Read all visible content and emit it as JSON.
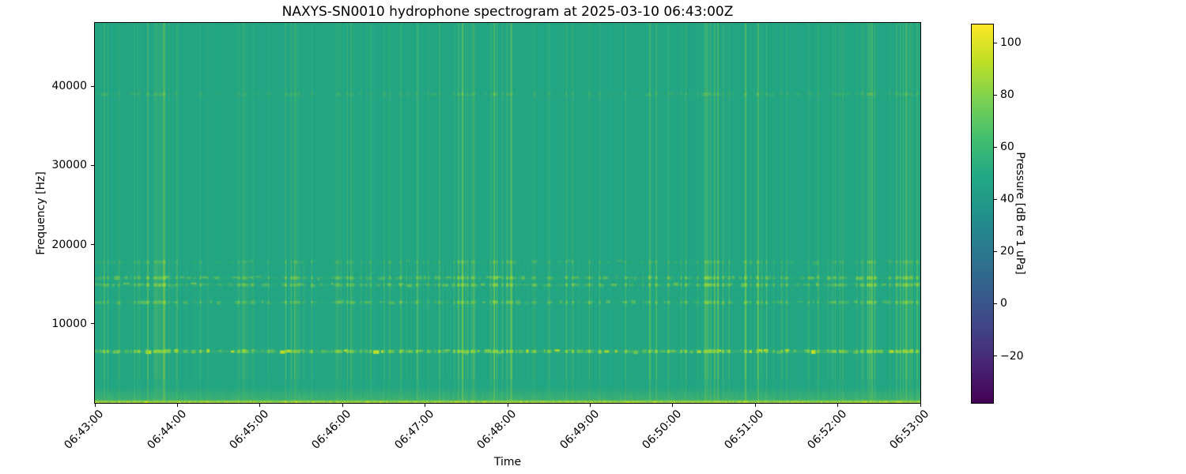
{
  "chart_data": {
    "type": "heatmap",
    "title": "NAXYS-SN0010 hydrophone spectrogram at 2025-03-10 06:43:00Z",
    "xlabel": "Time",
    "ylabel": "Frequency [Hz]",
    "x_ticks": [
      "06:43:00",
      "06:44:00",
      "06:45:00",
      "06:46:00",
      "06:47:00",
      "06:48:00",
      "06:49:00",
      "06:50:00",
      "06:51:00",
      "06:52:00",
      "06:53:00"
    ],
    "x_start": "06:43:00",
    "x_end": "06:53:00",
    "y_ticks": [
      10000,
      20000,
      30000,
      40000
    ],
    "ylim": [
      0,
      48000
    ],
    "grid": false,
    "colorbar": {
      "label": "Pressure [dB re 1 uPa]",
      "ticks": [
        100,
        80,
        60,
        40,
        20,
        0,
        -20
      ],
      "vmin": -38,
      "vmax": 107,
      "colormap": "viridis",
      "viridis_stops": [
        "#440154",
        "#482475",
        "#414487",
        "#355f8d",
        "#2a788e",
        "#21918c",
        "#22a884",
        "#44bf70",
        "#7ad151",
        "#bddf26",
        "#fde725"
      ],
      "position": "right"
    },
    "background_level_db": 55,
    "colors": {
      "base": "#21a585",
      "streak": "#8dd342",
      "hot": "#c8e020",
      "spark": "#d8e219",
      "dark": "#17866f"
    },
    "tonal_bands": [
      {
        "freq_hz": 6500,
        "peak_db": 85,
        "bandwidth_hz": 450,
        "strength": 0.85,
        "style": "bright dashes"
      },
      {
        "freq_hz": 12700,
        "peak_db": 66,
        "bandwidth_hz": 300,
        "strength": 0.34,
        "style": "dashes"
      },
      {
        "freq_hz": 14900,
        "peak_db": 70,
        "bandwidth_hz": 350,
        "strength": 0.45,
        "style": "dashes"
      },
      {
        "freq_hz": 15800,
        "peak_db": 68,
        "bandwidth_hz": 350,
        "strength": 0.4,
        "style": "dashes"
      },
      {
        "freq_hz": 17800,
        "peak_db": 60,
        "bandwidth_hz": 250,
        "strength": 0.16,
        "style": "faint dashes"
      },
      {
        "freq_hz": 39000,
        "peak_db": 58,
        "bandwidth_hz": 700,
        "strength": 0.13,
        "style": "faint continuous"
      }
    ],
    "low_freq_band": {
      "max_freq_hz": 1800,
      "peak_db": 80,
      "style": "bright bottom edge"
    },
    "transients": {
      "description": "broadband vertical streaks across full band",
      "approx_count": 170,
      "cluster_times": [
        "06:43:45",
        "06:47:30",
        "06:47:55",
        "06:50:30",
        "06:51:00",
        "06:52:20",
        "06:52:50"
      ]
    }
  }
}
